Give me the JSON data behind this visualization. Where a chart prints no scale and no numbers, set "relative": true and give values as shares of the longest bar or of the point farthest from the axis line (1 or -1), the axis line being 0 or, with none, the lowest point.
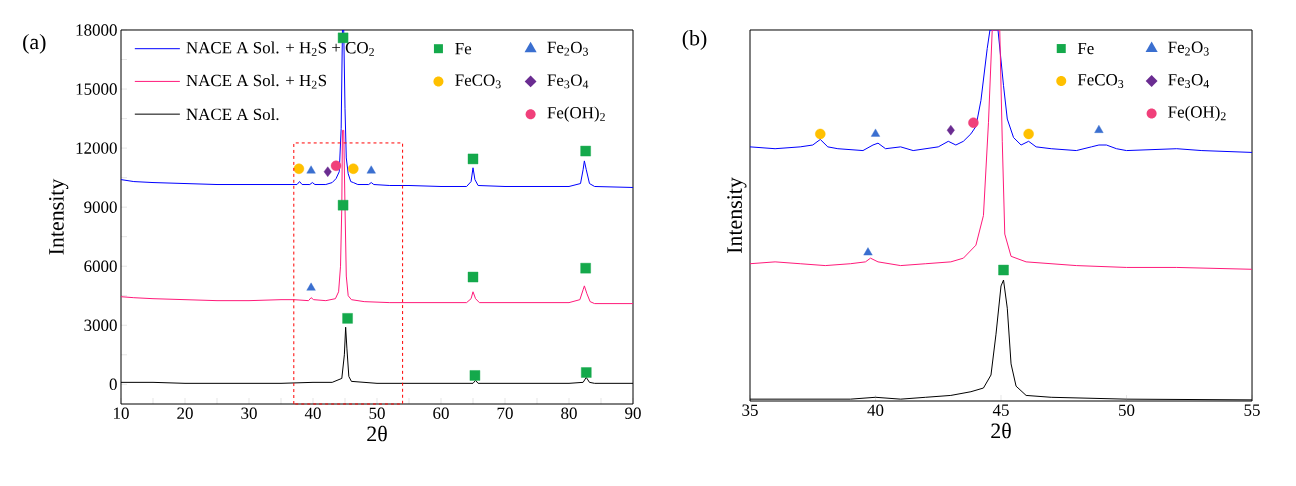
{
  "chart_data": [
    {
      "type": "line",
      "title": "(a)",
      "xlabel": "2θ",
      "ylabel": "Intensity",
      "xlim": [
        10,
        90
      ],
      "ylim": [
        -1000,
        18000
      ],
      "xticks": [
        10,
        {
          "value": 15,
          "label": null
        },
        20,
        {
          "value": 25,
          "label": null
        },
        30,
        {
          "value": 35,
          "label": null
        },
        40,
        {
          "value": 45,
          "label": null
        },
        50,
        {
          "value": 55,
          "label": null
        },
        60,
        {
          "value": 65,
          "label": null
        },
        70,
        {
          "value": 75,
          "label": null
        },
        80,
        {
          "value": 85,
          "label": null
        },
        90
      ],
      "yticks": [
        0,
        {
          "value": 1500,
          "label": null
        },
        3000,
        {
          "value": 4500,
          "label": null
        },
        6000,
        {
          "value": 7500,
          "label": null
        },
        9000,
        {
          "value": 10500,
          "label": null
        },
        12000,
        {
          "value": 13500,
          "label": null
        },
        15000,
        {
          "value": 16500,
          "label": null
        },
        18000
      ],
      "legend": "top",
      "series": [
        {
          "name": "NACE A Sol. + H$_{2}$S + CO$_{2}$",
          "color": "#0000ff",
          "marker": "none",
          "x": [
            10,
            12,
            15,
            20,
            25,
            30,
            35,
            37.5,
            37.9,
            38.3,
            39.5,
            39.9,
            40.3,
            42,
            43,
            43.6,
            44.1,
            44.4,
            44.6,
            44.8,
            45.0,
            45.2,
            45.5,
            45.9,
            46.3,
            47,
            48.7,
            49.1,
            49.5,
            52,
            55,
            60,
            64,
            64.7,
            65.0,
            65.3,
            65.8,
            70,
            75,
            80,
            81.8,
            82.2,
            82.4,
            82.7,
            83.2,
            84,
            90
          ],
          "values": [
            10400,
            10300,
            10250,
            10200,
            10150,
            10150,
            10150,
            10150,
            10300,
            10150,
            10150,
            10250,
            10150,
            10150,
            10250,
            10450,
            10800,
            13000,
            18000,
            18000,
            14000,
            11500,
            10700,
            10300,
            10250,
            10150,
            10150,
            10250,
            10150,
            10100,
            10100,
            10050,
            10050,
            10300,
            11000,
            10400,
            10100,
            10050,
            10050,
            10050,
            10200,
            10900,
            11350,
            10900,
            10200,
            10050,
            10000
          ]
        },
        {
          "name": "NACE A Sol. + H$_{2}$S",
          "color": "#ff1a7a",
          "marker": "none",
          "x": [
            10,
            12,
            15,
            20,
            25,
            30,
            35,
            37,
            39.3,
            39.7,
            40.1,
            42,
            43.5,
            44.0,
            44.3,
            44.5,
            44.6,
            44.8,
            45.0,
            45.2,
            45.5,
            46,
            48,
            52,
            55,
            60,
            64,
            64.7,
            65,
            65.4,
            66,
            70,
            75,
            80,
            81.7,
            82.2,
            82.4,
            82.8,
            83.3,
            84,
            90
          ],
          "values": [
            4450,
            4400,
            4350,
            4300,
            4250,
            4250,
            4300,
            4300,
            4250,
            4400,
            4300,
            4250,
            4350,
            4700,
            6000,
            9000,
            12900,
            12900,
            9000,
            5500,
            4500,
            4300,
            4200,
            4150,
            4150,
            4150,
            4150,
            4350,
            4700,
            4350,
            4150,
            4150,
            4150,
            4150,
            4300,
            4800,
            5000,
            4600,
            4200,
            4100,
            4100
          ]
        },
        {
          "name": "NACE A Sol.",
          "color": "#000000",
          "marker": "none",
          "x": [
            10,
            15,
            20,
            30,
            35,
            40,
            43,
            44.5,
            44.9,
            45.1,
            45.3,
            45.6,
            46,
            50,
            55,
            60,
            65,
            65.4,
            65.8,
            70,
            80,
            82.2,
            82.7,
            83.2,
            84,
            90
          ],
          "values": [
            100,
            100,
            50,
            50,
            50,
            100,
            100,
            300,
            1500,
            2900,
            1800,
            400,
            150,
            50,
            50,
            50,
            50,
            200,
            50,
            50,
            50,
            100,
            350,
            100,
            50,
            50
          ]
        },
        {
          "name": "Fe",
          "type": "scatter",
          "color": "#14a94b",
          "marker": "square",
          "x": [
            44.7,
            44.7,
            45.4,
            65,
            65,
            65.3,
            82.6,
            82.6,
            82.7
          ],
          "values": [
            17600,
            9100,
            3350,
            11450,
            5450,
            450,
            11850,
            5900,
            600
          ]
        },
        {
          "name": "Fe$_{2}$O$_{3}$",
          "type": "scatter",
          "color": "#3a6fd0",
          "marker": "triangle",
          "x": [
            39.7,
            49.1,
            39.7
          ],
          "values": [
            10850,
            10850,
            4900
          ]
        },
        {
          "name": "FeCO$_{3}$",
          "type": "scatter",
          "color": "#ffc000",
          "marker": "circle",
          "x": [
            37.8,
            46.3
          ],
          "values": [
            10950,
            10950
          ]
        },
        {
          "name": "Fe$_{3}$O$_{4}$",
          "type": "scatter",
          "color": "#6a2c91",
          "marker": "diamond",
          "x": [
            42.3
          ],
          "values": [
            10800
          ]
        },
        {
          "name": "Fe(OH)$_{2}$",
          "type": "scatter",
          "color": "#f0407a",
          "marker": "circle",
          "x": [
            43.6
          ],
          "values": [
            11100
          ]
        }
      ]
    },
    {
      "type": "line",
      "title": "(b)",
      "xlabel": "2θ",
      "ylabel": "Intensity",
      "xlim": [
        35,
        55
      ],
      "xticks": [
        35,
        40,
        45,
        50,
        55
      ],
      "relative": true,
      "tick_labels": "x",
      "legend": "top right",
      "series": [
        {
          "color": "#0000ff",
          "marker": "none",
          "x": [
            35,
            36,
            37,
            37.5,
            37.8,
            38.1,
            38.5,
            39.5,
            39.9,
            40.1,
            40.4,
            41,
            41.5,
            42.5,
            42.9,
            43.2,
            43.5,
            43.8,
            44.0,
            44.2,
            44.45,
            44.56,
            44.88,
            45.1,
            45.25,
            45.5,
            45.8,
            46.1,
            46.4,
            47,
            48,
            48.6,
            48.9,
            49.2,
            49.6,
            50,
            52,
            53,
            55
          ],
          "values": [
            0.685,
            0.68,
            0.685,
            0.69,
            0.705,
            0.685,
            0.68,
            0.675,
            0.69,
            0.695,
            0.68,
            0.685,
            0.675,
            0.685,
            0.7,
            0.69,
            0.7,
            0.72,
            0.74,
            0.81,
            0.95,
            1,
            1,
            0.85,
            0.76,
            0.71,
            0.69,
            0.7,
            0.685,
            0.68,
            0.675,
            0.685,
            0.69,
            0.69,
            0.68,
            0.675,
            0.68,
            0.675,
            0.67
          ]
        },
        {
          "color": "#ff1a7a",
          "marker": "none",
          "x": [
            35,
            36,
            37,
            38,
            39,
            39.6,
            39.8,
            40.1,
            41,
            42,
            43,
            43.5,
            44.0,
            44.3,
            44.5,
            44.65,
            44.95,
            45.05,
            45.15,
            45.4,
            46,
            47,
            48,
            50,
            52,
            55
          ],
          "values": [
            0.37,
            0.375,
            0.37,
            0.365,
            0.37,
            0.375,
            0.385,
            0.375,
            0.365,
            0.37,
            0.375,
            0.385,
            0.42,
            0.5,
            0.75,
            1,
            1,
            0.7,
            0.45,
            0.39,
            0.375,
            0.37,
            0.365,
            0.36,
            0.36,
            0.355
          ]
        },
        {
          "color": "#000000",
          "marker": "none",
          "x": [
            35,
            37,
            39,
            40,
            41,
            42,
            43,
            43.8,
            44.3,
            44.6,
            44.8,
            45.0,
            45.1,
            45.25,
            45.4,
            45.6,
            46,
            47,
            50,
            55
          ],
          "values": [
            0.005,
            0.005,
            0.005,
            0.01,
            0.005,
            0.01,
            0.015,
            0.025,
            0.035,
            0.07,
            0.18,
            0.31,
            0.326,
            0.25,
            0.1,
            0.04,
            0.015,
            0.01,
            0.005,
            0.003
          ]
        },
        {
          "name": "Fe",
          "type": "scatter",
          "color": "#14a94b",
          "marker": "square",
          "x": [
            45.1
          ],
          "values": [
            0.353
          ]
        },
        {
          "name": "Fe$_{2}$O$_{3}$",
          "type": "scatter",
          "color": "#3a6fd0",
          "marker": "triangle",
          "x": [
            40.0,
            48.9,
            39.7
          ],
          "values": [
            0.72,
            0.73,
            0.4
          ]
        },
        {
          "name": "FeCO$_{3}$",
          "type": "scatter",
          "color": "#ffc000",
          "marker": "circle",
          "x": [
            37.8,
            46.1
          ],
          "values": [
            0.72,
            0.72
          ]
        },
        {
          "name": "Fe$_{3}$O$_{4}$",
          "type": "scatter",
          "color": "#6a2c91",
          "marker": "diamond",
          "x": [
            43.0
          ],
          "values": [
            0.73
          ]
        },
        {
          "name": "Fe(OH)$_{2}$",
          "type": "scatter",
          "color": "#f0407a",
          "marker": "circle",
          "x": [
            43.9
          ],
          "values": [
            0.75
          ]
        }
      ]
    }
  ]
}
